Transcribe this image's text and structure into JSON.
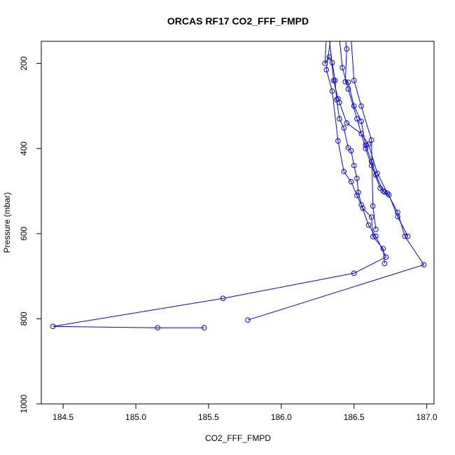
{
  "chart_data": {
    "type": "line",
    "title": "ORCAS RF17 CO2_FFF_FMPD",
    "xlabel": "CO2_FFF_FMPD",
    "ylabel": "Pressure (mbar)",
    "xlim": [
      184.35,
      187.05
    ],
    "ylim": [
      1000,
      148
    ],
    "y_reversed": true,
    "grid": false,
    "x_ticks": [
      184.5,
      185.0,
      185.5,
      186.0,
      186.5,
      187.0
    ],
    "x_tick_labels": [
      "184.5",
      "185.0",
      "185.5",
      "186.0",
      "186.5",
      "187.0"
    ],
    "y_ticks": [
      200,
      400,
      600,
      800,
      1000
    ],
    "y_tick_labels": [
      "200",
      "400",
      "600",
      "800",
      "1000"
    ],
    "line_color": "#0000ff",
    "marker": "open-circle",
    "series": [
      {
        "points": [
          [
            186.31,
            140
          ],
          [
            186.3,
            200
          ],
          [
            186.33,
            185
          ],
          [
            186.35,
            198
          ],
          [
            186.37,
            240
          ],
          [
            186.38,
            285
          ],
          [
            186.4,
            330
          ],
          [
            186.43,
            352
          ],
          [
            186.46,
            398
          ],
          [
            186.48,
            405
          ],
          [
            186.5,
            440
          ],
          [
            186.52,
            470
          ],
          [
            186.53,
            503
          ],
          [
            186.55,
            532
          ],
          [
            186.6,
            580
          ],
          [
            186.65,
            606
          ],
          [
            186.72,
            655
          ],
          [
            186.5,
            693
          ],
          [
            185.6,
            752
          ],
          [
            184.43,
            818
          ],
          [
            185.15,
            821
          ],
          [
            185.47,
            821
          ]
        ]
      },
      {
        "points": [
          [
            186.33,
            140
          ],
          [
            186.36,
            240
          ],
          [
            186.39,
            283
          ],
          [
            186.4,
            292
          ],
          [
            186.45,
            340
          ],
          [
            186.55,
            365
          ],
          [
            186.6,
            390
          ],
          [
            186.66,
            458
          ],
          [
            186.73,
            505
          ],
          [
            186.8,
            550
          ],
          [
            186.85,
            606
          ],
          [
            186.98,
            673
          ],
          [
            185.77,
            803
          ]
        ]
      },
      {
        "points": [
          [
            186.34,
            140
          ],
          [
            186.31,
            215
          ],
          [
            186.35,
            265
          ],
          [
            186.39,
            382
          ],
          [
            186.43,
            454
          ],
          [
            186.48,
            478
          ],
          [
            186.52,
            510
          ],
          [
            186.56,
            540
          ],
          [
            186.62,
            561
          ],
          [
            186.63,
            607
          ],
          [
            186.7,
            635
          ],
          [
            186.71,
            670
          ]
        ]
      },
      {
        "points": [
          [
            186.44,
            140
          ],
          [
            186.45,
            166
          ],
          [
            186.44,
            243
          ],
          [
            186.46,
            244
          ],
          [
            186.5,
            300
          ],
          [
            186.55,
            336
          ],
          [
            186.58,
            392
          ],
          [
            186.62,
            430
          ],
          [
            186.65,
            462
          ],
          [
            186.7,
            500
          ],
          [
            186.74,
            509
          ],
          [
            186.8,
            560
          ],
          [
            186.87,
            606
          ]
        ]
      },
      {
        "points": [
          [
            186.48,
            140
          ],
          [
            186.5,
            240
          ],
          [
            186.55,
            300
          ],
          [
            186.62,
            380
          ],
          [
            186.63,
            535
          ],
          [
            186.65,
            590
          ]
        ]
      },
      {
        "points": [
          [
            186.4,
            140
          ],
          [
            186.42,
            210
          ],
          [
            186.46,
            260
          ],
          [
            186.52,
            330
          ],
          [
            186.58,
            400
          ],
          [
            186.62,
            440
          ],
          [
            186.68,
            493
          ],
          [
            186.71,
            502
          ]
        ]
      }
    ]
  }
}
